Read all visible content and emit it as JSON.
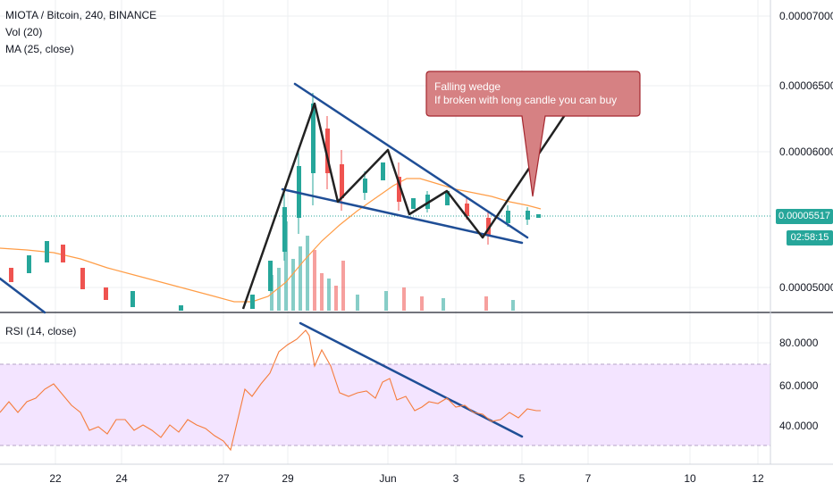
{
  "title": "MIOTA / Bitcoin, 240, BINANCE",
  "indicators": {
    "vol": "Vol (20)",
    "ma": "MA (25, close)",
    "rsi": "RSI (14, close)"
  },
  "price_axis": [
    "0.00007000",
    "0.00006500",
    "0.00006000",
    "0.00005000"
  ],
  "current_price": "0.00005517",
  "countdown": "02:58:15",
  "rsi_axis": [
    "80.0000",
    "60.0000",
    "40.0000"
  ],
  "time_axis": [
    "22",
    "24",
    "27",
    "29",
    "Jun",
    "3",
    "5",
    "7",
    "10",
    "12"
  ],
  "annotation": {
    "line1": "Falling wedge",
    "line2": "If broken with long candle you can buy"
  },
  "colors": {
    "up": "#26a69a",
    "down": "#ef5350",
    "ma": "#ff9d47",
    "rsi": "#f57c3c",
    "trendline": "#1f4e96",
    "zigzag": "#222222",
    "rsi_band": "#f3e4ff",
    "callout_fill": "#d68183",
    "callout_border": "#a52830"
  }
}
